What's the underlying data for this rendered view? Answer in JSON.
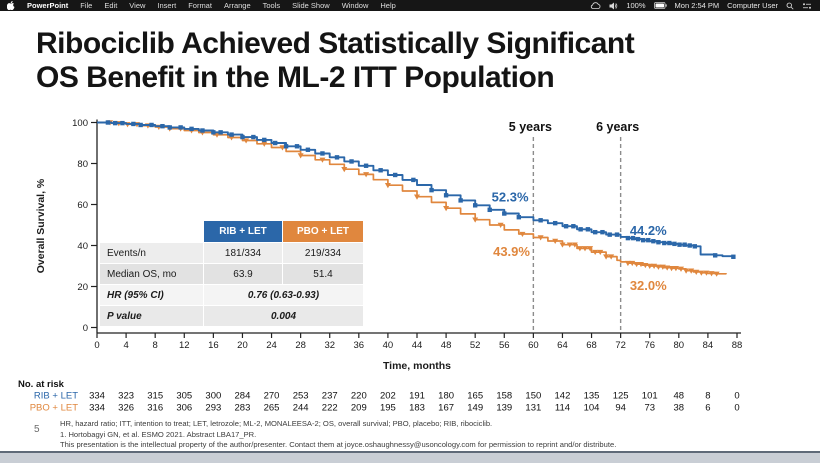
{
  "colors": {
    "rib": "#2b67a9",
    "pbo": "#e0873e",
    "axis": "#222222",
    "dash": "#8c8c8c"
  },
  "menubar": {
    "app": "PowerPoint",
    "items": [
      "File",
      "Edit",
      "View",
      "Insert",
      "Format",
      "Arrange",
      "Tools",
      "Slide Show",
      "Window",
      "Help"
    ],
    "status": {
      "icons": [
        "cloud-icon",
        "volume-icon",
        "battery-icon",
        "search-icon",
        "control-center-icon"
      ],
      "battery": "100%",
      "clock": "Mon 2:54 PM",
      "user": "Computer User"
    }
  },
  "slide": {
    "title_line1": "Ribociclib Achieved Statistically Significant",
    "title_line2": "OS Benefit in the ML-2 ITT Population",
    "slide_number": "5",
    "footnotes": [
      "HR, hazard ratio; ITT, intention to treat; LET, letrozole; ML-2, MONALEESA-2; OS, overall survival; PBO, placebo; RIB, ribociclib.",
      "1. Hortobagyi GN, et al. ESMO 2021. Abstract LBA17_PR.",
      "This presentation is the intellectual property of the author/presenter. Contact them at joyce.oshaughnessy@usoncology.com for permission to reprint and/or distribute."
    ]
  },
  "table": {
    "headers": [
      "RIB + LET",
      "PBO + LET"
    ],
    "rows": [
      {
        "label": "Events/n",
        "values": [
          "181/334",
          "219/334"
        ]
      },
      {
        "label": "Median OS, mo",
        "values": [
          "63.9",
          "51.4"
        ]
      },
      {
        "label": "HR (95% CI)",
        "span": "0.76 (0.63-0.93)"
      },
      {
        "label": "P value",
        "span": "0.004"
      }
    ]
  },
  "chart_data": {
    "type": "line",
    "subtype": "kaplan-meier-step",
    "title": "",
    "xlabel": "Time, months",
    "ylabel": "Overall Survival, %",
    "xlim": [
      0,
      88
    ],
    "ylim": [
      0,
      100
    ],
    "xticks": [
      0,
      4,
      8,
      12,
      16,
      20,
      24,
      28,
      32,
      36,
      40,
      44,
      48,
      52,
      56,
      60,
      64,
      68,
      72,
      76,
      80,
      84,
      88
    ],
    "yticks": [
      0,
      20,
      40,
      60,
      80,
      100
    ],
    "grid": false,
    "legend_position": "table-header",
    "annotations": {
      "vlines": [
        {
          "x": 60,
          "label": "5 years"
        },
        {
          "x": 72,
          "label": "6 years"
        }
      ],
      "value_labels": [
        {
          "text": "52.3%",
          "series": "RIB + LET",
          "t": 56.8,
          "v": 61.5
        },
        {
          "text": "43.9%",
          "series": "PBO + LET",
          "t": 57.0,
          "v": 35.0
        },
        {
          "text": "44.2%",
          "series": "RIB + LET",
          "t": 75.8,
          "v": 45.2
        },
        {
          "text": "32.0%",
          "series": "PBO + LET",
          "t": 75.8,
          "v": 18.3
        }
      ]
    },
    "series": [
      {
        "name": "RIB + LET",
        "color": "#2b67a9",
        "marker": "square",
        "points": [
          [
            0,
            100
          ],
          [
            2,
            99.7
          ],
          [
            4,
            99.3
          ],
          [
            6,
            98.8
          ],
          [
            8,
            98.2
          ],
          [
            10,
            97.6
          ],
          [
            12,
            96.9
          ],
          [
            14,
            96.1
          ],
          [
            16,
            95.2
          ],
          [
            18,
            94.1
          ],
          [
            20,
            92.9
          ],
          [
            22,
            91.5
          ],
          [
            24,
            90.0
          ],
          [
            26,
            88.4
          ],
          [
            28,
            86.7
          ],
          [
            30,
            84.9
          ],
          [
            32,
            83.0
          ],
          [
            34,
            81.0
          ],
          [
            36,
            78.9
          ],
          [
            38,
            76.7
          ],
          [
            40,
            74.4
          ],
          [
            42,
            72.0
          ],
          [
            44,
            69.5
          ],
          [
            46,
            67.0
          ],
          [
            48,
            64.5
          ],
          [
            50,
            62.0
          ],
          [
            52,
            59.6
          ],
          [
            54,
            57.4
          ],
          [
            56,
            55.6
          ],
          [
            58,
            53.8
          ],
          [
            60,
            52.3
          ],
          [
            62,
            50.9
          ],
          [
            64,
            49.4
          ],
          [
            66,
            47.9
          ],
          [
            68,
            46.5
          ],
          [
            70,
            45.3
          ],
          [
            72,
            44.2
          ],
          [
            73,
            43.6
          ],
          [
            74,
            43.1
          ],
          [
            75,
            42.6
          ],
          [
            76,
            42.1
          ],
          [
            77,
            41.6
          ],
          [
            78,
            41.2
          ],
          [
            79,
            40.8
          ],
          [
            80,
            40.4
          ],
          [
            81,
            40.0
          ],
          [
            82,
            39.6
          ],
          [
            83,
            35.6
          ],
          [
            85,
            35.2
          ],
          [
            86,
            34.8
          ],
          [
            87.5,
            34.5
          ]
        ],
        "censor_t": [
          1.5,
          2.5,
          3.5,
          5,
          6,
          7.5,
          9,
          10,
          11.5,
          13,
          14.5,
          16,
          17,
          18.5,
          20,
          21.5,
          23,
          24.5,
          26,
          27.5,
          29,
          31,
          33,
          35,
          37,
          39,
          41,
          43.5,
          46,
          48,
          50,
          52,
          54,
          56,
          58,
          61,
          63,
          64.5,
          65.5,
          66.5,
          67.5,
          68.5,
          69.5,
          70.5,
          71.5,
          73,
          73.7,
          74.4,
          75.1,
          75.8,
          76.5,
          77.2,
          78,
          78.7,
          79.4,
          80.1,
          80.8,
          81.5,
          82.2,
          85,
          87.5
        ]
      },
      {
        "name": "PBO + LET",
        "color": "#e0873e",
        "marker": "triangle-down",
        "points": [
          [
            0,
            100
          ],
          [
            2,
            99.6
          ],
          [
            4,
            99.1
          ],
          [
            6,
            98.5
          ],
          [
            8,
            97.8
          ],
          [
            10,
            97.0
          ],
          [
            12,
            96.1
          ],
          [
            14,
            95.1
          ],
          [
            16,
            94.0
          ],
          [
            18,
            92.7
          ],
          [
            20,
            91.2
          ],
          [
            22,
            89.6
          ],
          [
            24,
            87.8
          ],
          [
            26,
            85.9
          ],
          [
            28,
            83.9
          ],
          [
            30,
            81.8
          ],
          [
            32,
            79.6
          ],
          [
            34,
            77.2
          ],
          [
            36,
            74.7
          ],
          [
            38,
            72.1
          ],
          [
            40,
            69.4
          ],
          [
            42,
            66.6
          ],
          [
            44,
            63.8
          ],
          [
            46,
            61.0
          ],
          [
            48,
            58.2
          ],
          [
            50,
            55.4
          ],
          [
            52,
            52.6
          ],
          [
            54,
            50.0
          ],
          [
            56,
            47.6
          ],
          [
            58,
            45.6
          ],
          [
            60,
            43.9
          ],
          [
            62,
            42.2
          ],
          [
            64,
            40.4
          ],
          [
            66,
            38.6
          ],
          [
            68,
            36.8
          ],
          [
            70,
            34.6
          ],
          [
            71.5,
            32.8
          ],
          [
            72,
            32.0
          ],
          [
            73,
            31.4
          ],
          [
            74,
            30.9
          ],
          [
            75,
            30.4
          ],
          [
            76,
            30.0
          ],
          [
            77,
            29.6
          ],
          [
            78,
            29.2
          ],
          [
            79,
            28.9
          ],
          [
            80,
            28.6
          ],
          [
            81,
            27.7
          ],
          [
            82,
            27.1
          ],
          [
            83,
            26.7
          ],
          [
            84,
            26.4
          ],
          [
            85,
            26.2
          ],
          [
            86.5,
            26.0
          ]
        ],
        "censor_t": [
          1.8,
          3,
          4.2,
          5.5,
          7,
          8.5,
          10,
          11.5,
          13,
          14.5,
          16.5,
          18.5,
          20.5,
          23,
          25.5,
          28,
          31,
          34,
          37,
          40,
          44,
          48,
          52,
          55.5,
          58.5,
          61,
          63,
          64,
          65,
          65.7,
          66.4,
          67.1,
          67.8,
          68.5,
          69.2,
          70,
          70.7,
          73,
          73.6,
          74.2,
          74.8,
          75.4,
          76,
          76.6,
          77.2,
          77.8,
          78.4,
          79,
          79.6,
          80.3,
          81,
          81.7,
          82.4,
          83.1,
          83.8,
          84.5,
          85.2
        ]
      }
    ],
    "at_risk": {
      "title": "No. at risk",
      "rows": [
        {
          "label": "RIB + LET",
          "color": "#2b67a9",
          "values": [
            334,
            323,
            315,
            305,
            300,
            284,
            270,
            253,
            237,
            220,
            202,
            191,
            180,
            165,
            158,
            150,
            142,
            135,
            125,
            101,
            48,
            8,
            0
          ]
        },
        {
          "label": "PBO + LET",
          "color": "#e0873e",
          "values": [
            334,
            326,
            316,
            306,
            293,
            283,
            265,
            244,
            222,
            209,
            195,
            183,
            167,
            149,
            139,
            131,
            114,
            104,
            94,
            73,
            38,
            6,
            0
          ]
        }
      ]
    }
  }
}
